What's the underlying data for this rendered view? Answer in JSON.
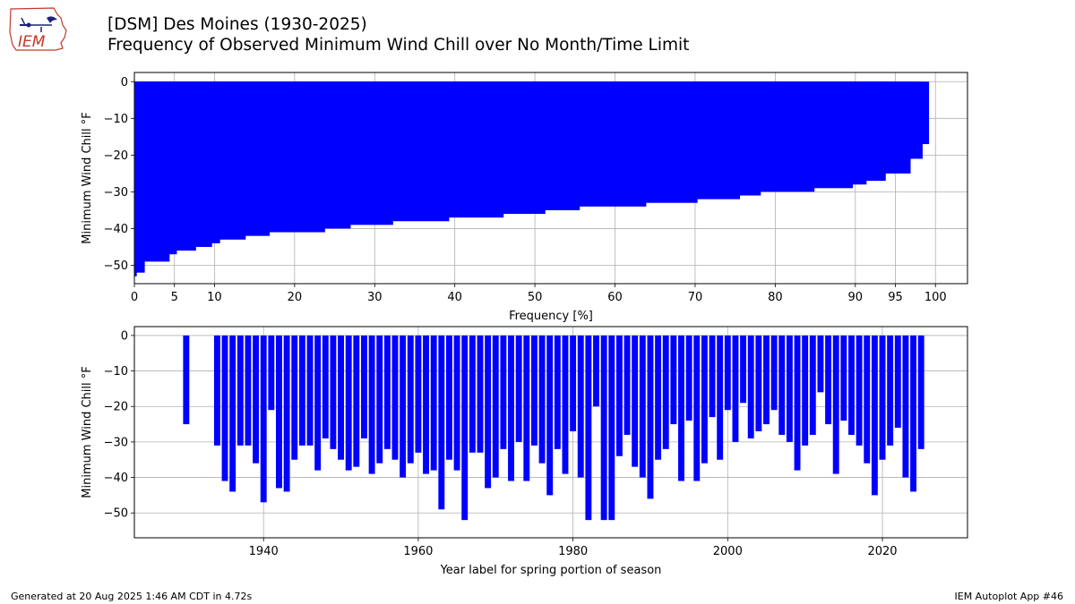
{
  "header": {
    "logo_text": "IEM",
    "title": "[DSM] Des Moines (1930-2025)",
    "subtitle": "Frequency of Observed Minimum Wind Chill over No Month/Time Limit"
  },
  "footer": {
    "generated": "Generated at 20 Aug 2025 1:46 AM CDT in 4.72s",
    "app": "IEM Autoplot App #46"
  },
  "colors": {
    "bar": "#0000ff",
    "grid": "#b0b0b0",
    "axis": "#000000"
  },
  "chart_data": [
    {
      "type": "bar",
      "orientation": "horizontal",
      "xlabel": "Frequency [%]",
      "ylabel": "Minimum Wind Chill °F",
      "xlim": [
        0,
        104
      ],
      "ylim": [
        -55,
        2.5
      ],
      "xticks": [
        0,
        5,
        10,
        20,
        30,
        40,
        50,
        60,
        70,
        80,
        90,
        95,
        100
      ],
      "yticks": [
        0,
        -10,
        -20,
        -30,
        -40,
        -50
      ],
      "grid": true,
      "x": [
        0.3,
        1.3,
        4.4,
        5.3,
        7.7,
        9.7,
        10.7,
        13.9,
        16.9,
        23.8,
        27.0,
        32.3,
        39.3,
        46.1,
        51.3,
        55.6,
        63.9,
        70.3,
        75.6,
        78.2,
        84.9,
        89.7,
        91.4,
        93.8,
        96.9,
        98.4,
        99.2
      ],
      "y": [
        -53,
        -52,
        -49,
        -47,
        -46,
        -45,
        -44,
        -43,
        -42,
        -41,
        -40,
        -39,
        -38,
        -37,
        -36,
        -35,
        -34,
        -33,
        -32,
        -31,
        -30,
        -29,
        -28,
        -27,
        -25,
        -21,
        -17
      ]
    },
    {
      "type": "bar",
      "xlabel": "Year label for spring portion of season",
      "ylabel": "Minimum Wind Chill °F",
      "xlim": [
        1923.3,
        2031.0
      ],
      "ylim": [
        -57.0,
        2.5
      ],
      "xticks": [
        1940,
        1960,
        1980,
        2000,
        2020
      ],
      "yticks": [
        0,
        -10,
        -20,
        -30,
        -40,
        -50
      ],
      "grid": true,
      "years": [
        1930,
        1934,
        1935,
        1936,
        1937,
        1938,
        1939,
        1940,
        1941,
        1942,
        1943,
        1944,
        1945,
        1946,
        1947,
        1948,
        1949,
        1950,
        1951,
        1952,
        1953,
        1954,
        1955,
        1956,
        1957,
        1958,
        1959,
        1960,
        1961,
        1962,
        1963,
        1964,
        1965,
        1966,
        1967,
        1968,
        1969,
        1970,
        1971,
        1972,
        1973,
        1974,
        1975,
        1976,
        1977,
        1978,
        1979,
        1980,
        1981,
        1982,
        1983,
        1984,
        1985,
        1986,
        1987,
        1988,
        1989,
        1990,
        1991,
        1992,
        1993,
        1994,
        1995,
        1996,
        1997,
        1998,
        1999,
        2000,
        2001,
        2002,
        2003,
        2004,
        2005,
        2006,
        2007,
        2008,
        2009,
        2010,
        2011,
        2012,
        2013,
        2014,
        2015,
        2016,
        2017,
        2018,
        2019,
        2020,
        2021,
        2022,
        2023,
        2024,
        2025
      ],
      "values": [
        -25,
        -31,
        -41,
        -44,
        -31,
        -31,
        -36,
        -47,
        -21,
        -43,
        -44,
        -35,
        -31,
        -31,
        -38,
        -29,
        -32,
        -35,
        -38,
        -37,
        -29,
        -39,
        -36,
        -32,
        -35,
        -40,
        -36,
        -33,
        -39,
        -38,
        -49,
        -35,
        -38,
        -52,
        -33,
        -33,
        -43,
        -40,
        -32,
        -41,
        -30,
        -41,
        -31,
        -36,
        -45,
        -32,
        -39,
        -27,
        -40,
        -52,
        -20,
        -52,
        -52,
        -34,
        -28,
        -37,
        -40,
        -46,
        -35,
        -32,
        -25,
        -41,
        -24,
        -41,
        -36,
        -23,
        -35,
        -21,
        -30,
        -19,
        -29,
        -27,
        -25,
        -21,
        -28,
        -30,
        -38,
        -31,
        -28,
        -16,
        -25,
        -39,
        -24,
        -28,
        -31,
        -36,
        -45,
        -35,
        -31,
        -26,
        -40,
        -44,
        -32
      ]
    }
  ]
}
